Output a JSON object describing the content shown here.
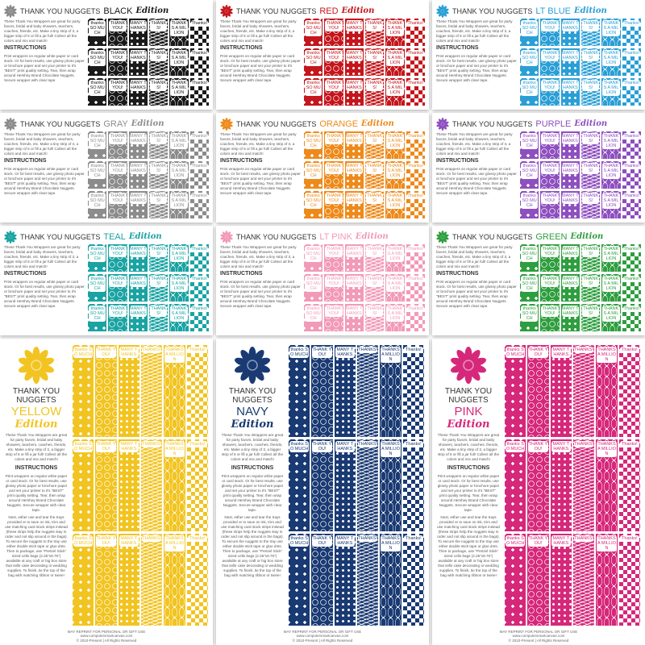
{
  "common": {
    "title": "THANK YOU NUGGETS",
    "edition": "Edition",
    "description": "These Thank You Wrappers are great for party favors, bridal and baby showers, teachers, coaches, friends, etc. Make a tiny strip of 3, a bigger strip of 6 or fill a jar full! Collect all the colors and mix and match!",
    "instructions_heading": "INSTRUCTIONS",
    "instructions_1": "Print wrappers on regular white paper or card stock. Or for best results, use glossy photo paper or brochure paper and set your printer to it's \"BEST\" print quality setting. Tear, then wrap around Hershey Brand Chocolate Nuggets. Secure wrapper with clear tape.",
    "instructions_2": "Next, either use and tear the trays provided or to save on ink, trim and use matching card stock strips instead (these strips help the nuggets stay in order and not slip around in the bags). To secure the nuggets to the tray use either double stick tape or glue dots. Then to package, use \"Pretzel Stick\" sized cello bags (2.25\"x9.75\") available at any craft or big box store that sells cake decorating or wedding supplies. To finish, tie the top of the bag with matching ribbon or twine!",
    "strip_labels": [
      "thanks SO MUCH",
      "THANK YOU!",
      "MANY THANKS",
      "THANKS!",
      "THANKS A MILLION",
      "Thanks!"
    ],
    "footer": [
      "MAY REPRINT FOR PERSONAL OR GIFT USE",
      "www.computersmartcanvas.com",
      "© 2010-Present | All Rights Reserved"
    ]
  },
  "sheets": [
    {
      "id": "black",
      "color_name": "BLACK",
      "color": "#1a1a1a",
      "flower": "#8a8a8a"
    },
    {
      "id": "red",
      "color_name": "RED",
      "color": "#c4161c",
      "flower": "#c4161c"
    },
    {
      "id": "lt-blue",
      "color_name": "LT BLUE",
      "color": "#2a9fd6",
      "flower": "#2a9fd6"
    },
    {
      "id": "gray",
      "color_name": "GRAY",
      "color": "#8c8c8c",
      "flower": "#8c8c8c"
    },
    {
      "id": "orange",
      "color_name": "ORANGE",
      "color": "#ee8a1b",
      "flower": "#ee8a1b"
    },
    {
      "id": "purple",
      "color_name": "PURPLE",
      "color": "#8e4fbf",
      "flower": "#8e4fbf"
    },
    {
      "id": "teal",
      "color_name": "TEAL",
      "color": "#1aa3a3",
      "flower": "#1aa3a3"
    },
    {
      "id": "light-pink",
      "color_name": "LT PINK",
      "color": "#f29ab8",
      "flower": "#f29ab8"
    },
    {
      "id": "green",
      "color_name": "GREEN",
      "color": "#2e9e3e",
      "flower": "#2e9e3e"
    },
    {
      "id": "yellow",
      "color_name": "YELLOW",
      "color": "#f2c421",
      "flower": "#f2c421"
    },
    {
      "id": "navy",
      "color_name": "NAVY",
      "color": "#1a3a73",
      "flower": "#1a3a73"
    },
    {
      "id": "pink",
      "color_name": "PINK",
      "color": "#d6287a",
      "flower": "#d6287a"
    }
  ]
}
